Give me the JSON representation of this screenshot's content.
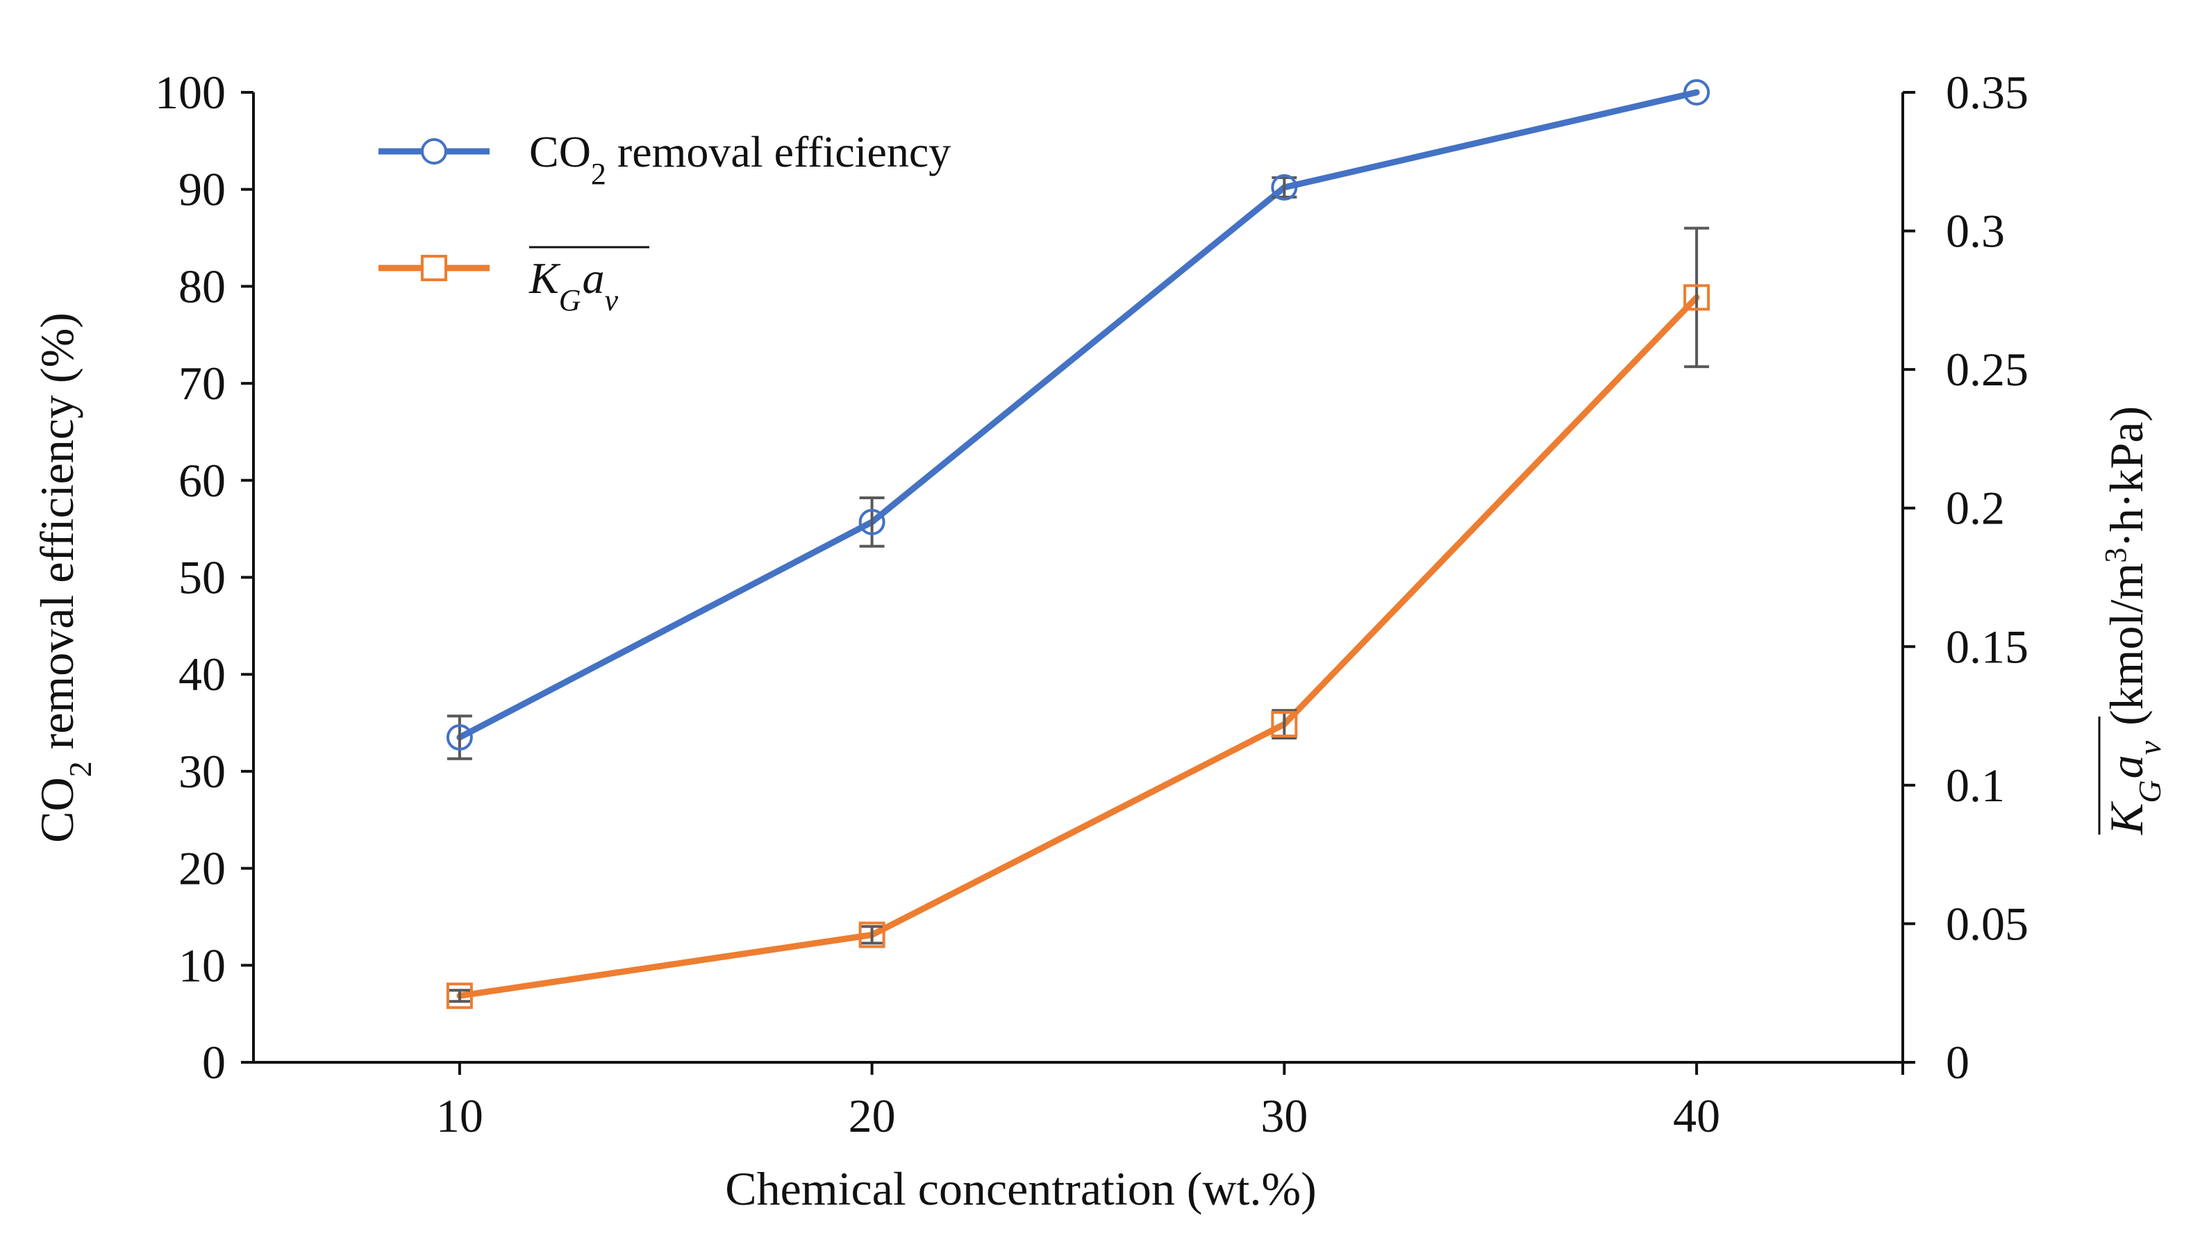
{
  "chart_data": {
    "type": "line",
    "title": "",
    "x": [
      10,
      20,
      30,
      40
    ],
    "xlabel": "Chemical concentration (wt.%)",
    "xlim": [
      5,
      45
    ],
    "xticks": [
      10,
      20,
      30,
      40
    ],
    "y_left": {
      "label": "CO2 removal efficiency (%)",
      "label_pre": "CO",
      "label_sub": "2",
      "label_post": " removal efficiency (%)",
      "ylim": [
        0,
        100
      ],
      "ticks": [
        0,
        10,
        20,
        30,
        40,
        50,
        60,
        70,
        80,
        90,
        100
      ]
    },
    "y_right": {
      "label": "KGav (kmol/m3·h·kPa)",
      "label_main": "K",
      "label_sub1": "G",
      "label_main2": "a",
      "label_sub2": "v",
      "label_units_pre": "(kmol/m",
      "label_units_sup": "3",
      "label_units_post": "·h·kPa)",
      "ylim": [
        0,
        0.35
      ],
      "ticks": [
        "0",
        "0.05",
        "0.1",
        "0.15",
        "0.2",
        "0.25",
        "0.3",
        "0.35"
      ]
    },
    "series": [
      {
        "name": "CO2 removal efficiency",
        "legend_pre": "CO",
        "legend_sub": "2",
        "legend_post": " removal efficiency",
        "axis": "left",
        "marker": "circle",
        "color": "#4472C4",
        "values": [
          33.5,
          55.7,
          90.2,
          100
        ],
        "errors": [
          2.2,
          2.5,
          1.0,
          0
        ]
      },
      {
        "name": "KGav",
        "legend_main": "K",
        "legend_sub1": "G",
        "legend_main2": "a",
        "legend_sub2": "v",
        "axis": "right",
        "marker": "square",
        "color": "#ED7D31",
        "values": [
          0.024,
          0.046,
          0.122,
          0.276
        ],
        "errors": [
          0.002,
          0.003,
          0.005,
          0.025
        ]
      }
    ],
    "grid": false,
    "legend_position": "top-left",
    "error_bar_color": "#595959"
  }
}
